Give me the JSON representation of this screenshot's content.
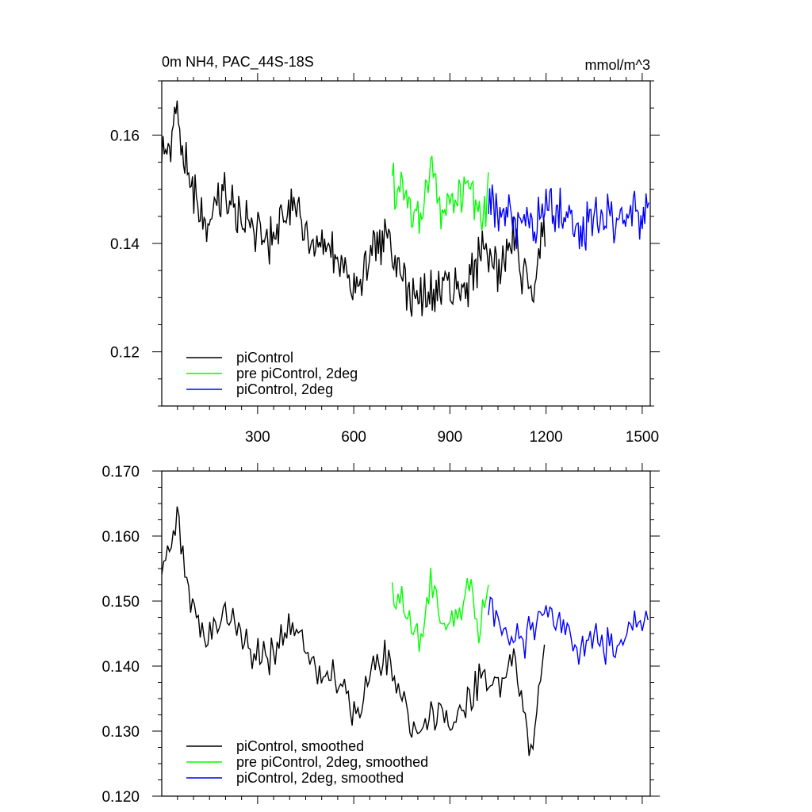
{
  "chart_data": [
    {
      "type": "line",
      "title": "0m NH4, PAC_44S-18S",
      "units": "mmol/m^3",
      "xlim": [
        1,
        1525
      ],
      "ylim": [
        0.11,
        0.17
      ],
      "x_ticks": [
        300,
        600,
        900,
        1200,
        1500
      ],
      "x_tick_labels": [
        "300",
        "600",
        "900",
        "1200",
        "1500"
      ],
      "y_ticks": [
        0.12,
        0.14,
        0.16
      ],
      "y_tick_labels": [
        "0.12",
        "0.14",
        "0.16"
      ],
      "grid": false,
      "legend_position": "bottom-left",
      "series": [
        {
          "name": "piControl",
          "color": "#000000",
          "x": [
            1,
            50,
            100,
            150,
            200,
            250,
            300,
            350,
            400,
            450,
            500,
            550,
            600,
            650,
            700,
            750,
            800,
            850,
            900,
            950,
            1000,
            1050,
            1100,
            1150,
            1200
          ],
          "y": [
            0.155,
            0.162,
            0.149,
            0.145,
            0.149,
            0.145,
            0.142,
            0.14,
            0.146,
            0.142,
            0.139,
            0.138,
            0.132,
            0.137,
            0.141,
            0.134,
            0.128,
            0.132,
            0.131,
            0.133,
            0.138,
            0.136,
            0.141,
            0.13,
            0.143
          ]
        },
        {
          "name": "pre piControl, 2deg",
          "color": "#00ff00",
          "x": [
            720,
            750,
            780,
            810,
            840,
            870,
            900,
            930,
            960,
            990,
            1020
          ],
          "y": [
            0.151,
            0.149,
            0.148,
            0.144,
            0.152,
            0.147,
            0.146,
            0.148,
            0.151,
            0.146,
            0.149
          ]
        },
        {
          "name": "piControl, 2deg",
          "color": "#0000ff",
          "x": [
            1020,
            1060,
            1100,
            1140,
            1180,
            1220,
            1260,
            1300,
            1340,
            1380,
            1420,
            1460,
            1500,
            1520
          ],
          "y": [
            0.149,
            0.145,
            0.143,
            0.144,
            0.146,
            0.148,
            0.146,
            0.141,
            0.145,
            0.144,
            0.143,
            0.145,
            0.147,
            0.146
          ]
        }
      ]
    },
    {
      "type": "line",
      "xlim": [
        1,
        1525
      ],
      "ylim": [
        0.12,
        0.17
      ],
      "x_ticks": [
        300,
        600,
        900,
        1200,
        1500
      ],
      "y_ticks": [
        0.12,
        0.13,
        0.14,
        0.15,
        0.16,
        0.17
      ],
      "y_tick_labels": [
        "0.120",
        "0.130",
        "0.140",
        "0.150",
        "0.160",
        "0.170"
      ],
      "grid": false,
      "legend_position": "bottom-left",
      "series": [
        {
          "name": "piControl, smoothed",
          "color": "#000000",
          "x": [
            1,
            50,
            100,
            150,
            200,
            250,
            300,
            350,
            400,
            450,
            500,
            550,
            600,
            650,
            700,
            750,
            800,
            850,
            900,
            950,
            1000,
            1050,
            1100,
            1150,
            1200
          ],
          "y": [
            0.154,
            0.162,
            0.148,
            0.144,
            0.149,
            0.144,
            0.142,
            0.141,
            0.147,
            0.143,
            0.139,
            0.138,
            0.133,
            0.138,
            0.142,
            0.135,
            0.129,
            0.133,
            0.131,
            0.134,
            0.139,
            0.137,
            0.142,
            0.126,
            0.144
          ]
        },
        {
          "name": "pre piControl, 2deg, smoothed",
          "color": "#00ff00",
          "x": [
            720,
            750,
            780,
            810,
            840,
            870,
            900,
            930,
            960,
            990,
            1020
          ],
          "y": [
            0.152,
            0.149,
            0.148,
            0.143,
            0.153,
            0.147,
            0.146,
            0.148,
            0.152,
            0.146,
            0.15
          ]
        },
        {
          "name": "piControl, 2deg, smoothed",
          "color": "#0000ff",
          "x": [
            1020,
            1060,
            1100,
            1140,
            1180,
            1220,
            1260,
            1300,
            1340,
            1380,
            1420,
            1460,
            1500,
            1520
          ],
          "y": [
            0.15,
            0.145,
            0.143,
            0.144,
            0.147,
            0.148,
            0.146,
            0.141,
            0.145,
            0.143,
            0.142,
            0.145,
            0.148,
            0.146
          ]
        }
      ]
    }
  ]
}
